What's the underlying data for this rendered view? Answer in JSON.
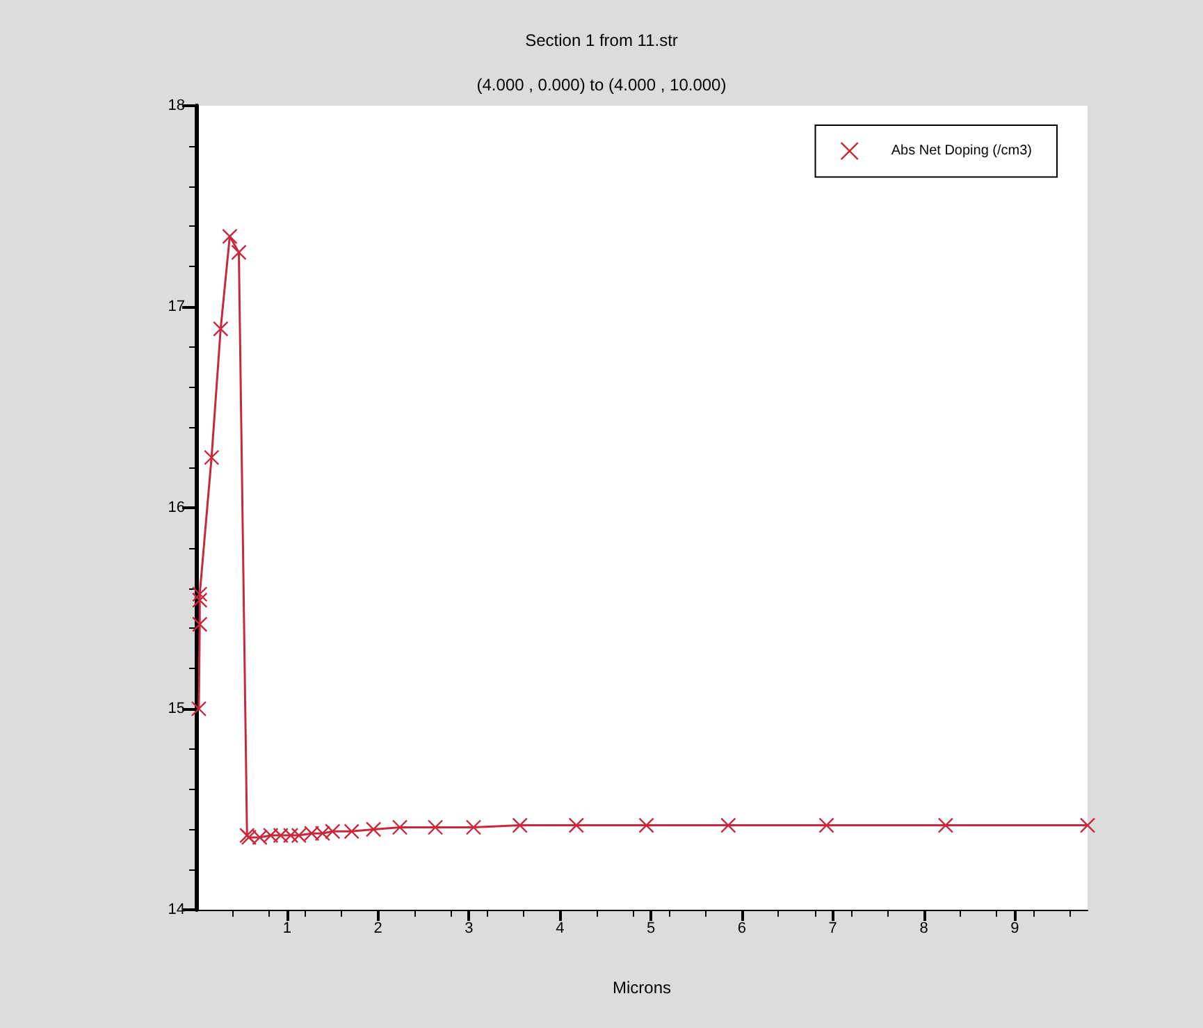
{
  "chart_data": {
    "type": "line",
    "title": "Section 1 from 11.str",
    "subtitle": "(4.000 , 0.000) to (4.000 , 10.000)",
    "xlabel": "Microns",
    "x": [
      0.03,
      0.04,
      0.04,
      0.04,
      0.17,
      0.27,
      0.37,
      0.47,
      0.56,
      0.58,
      0.7,
      0.82,
      0.93,
      1.04,
      1.13,
      1.27,
      1.39,
      1.5,
      1.71,
      1.95,
      2.24,
      2.63,
      3.05,
      3.56,
      4.18,
      4.95,
      5.85,
      6.93,
      8.24,
      9.8
    ],
    "series": [
      {
        "name": "Abs Net Doping (/cm3)",
        "color": "#c8283c",
        "values": [
          15.0,
          15.42,
          15.54,
          15.57,
          16.25,
          16.89,
          17.35,
          17.27,
          14.37,
          14.36,
          14.36,
          14.37,
          14.37,
          14.37,
          14.37,
          14.38,
          14.38,
          14.39,
          14.39,
          14.4,
          14.41,
          14.41,
          14.41,
          14.42,
          14.42,
          14.42,
          14.42,
          14.42,
          14.42,
          14.42
        ]
      }
    ],
    "xlim": [
      0,
      9.8
    ],
    "xticks": [
      1,
      2,
      3,
      4,
      5,
      6,
      7,
      8,
      9
    ],
    "ylim": [
      14,
      18
    ],
    "yticks": [
      14,
      15,
      16,
      17,
      18
    ],
    "grid": false,
    "legend": "top right",
    "marker": "cross",
    "line_style": "solid"
  }
}
